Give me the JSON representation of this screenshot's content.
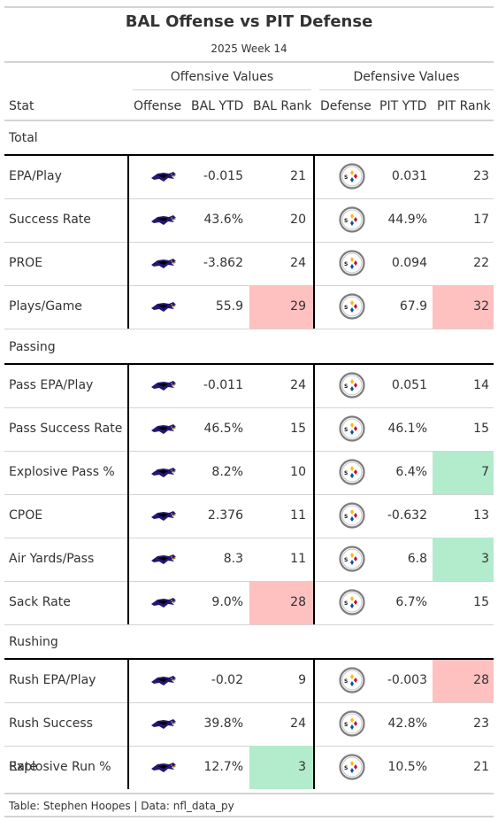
{
  "title": "BAL Offense vs PIT Defense",
  "subtitle": "2025 Week 14",
  "spanners": {
    "offense": "Offensive Values",
    "defense": "Defensive Values"
  },
  "columns": [
    "Stat",
    "Offense",
    "BAL YTD",
    "BAL Rank",
    "Defense",
    "PIT YTD",
    "PIT Rank"
  ],
  "icons": {
    "offense": "ravens-logo-icon",
    "defense": "steelers-logo-icon"
  },
  "colors": {
    "bad": "#ffc0c0",
    "good": "#b3ebcd",
    "rule": "#d3d3d3"
  },
  "groups": [
    {
      "label": "Total",
      "rows": [
        {
          "stat": "EPA/Play",
          "off_ytd": "-0.015",
          "off_rank": "21",
          "def_ytd": "0.031",
          "def_rank": "23",
          "off_hl": "",
          "def_hl": ""
        },
        {
          "stat": "Success Rate",
          "off_ytd": "43.6%",
          "off_rank": "20",
          "def_ytd": "44.9%",
          "def_rank": "17",
          "off_hl": "",
          "def_hl": ""
        },
        {
          "stat": "PROE",
          "off_ytd": "-3.862",
          "off_rank": "24",
          "def_ytd": "0.094",
          "def_rank": "22",
          "off_hl": "",
          "def_hl": ""
        },
        {
          "stat": "Plays/Game",
          "off_ytd": "55.9",
          "off_rank": "29",
          "def_ytd": "67.9",
          "def_rank": "32",
          "off_hl": "bad",
          "def_hl": "bad"
        }
      ]
    },
    {
      "label": "Passing",
      "rows": [
        {
          "stat": "Pass EPA/Play",
          "off_ytd": "-0.011",
          "off_rank": "24",
          "def_ytd": "0.051",
          "def_rank": "14",
          "off_hl": "",
          "def_hl": ""
        },
        {
          "stat": "Pass Success Rate",
          "off_ytd": "46.5%",
          "off_rank": "15",
          "def_ytd": "46.1%",
          "def_rank": "15",
          "off_hl": "",
          "def_hl": ""
        },
        {
          "stat": "Explosive Pass %",
          "off_ytd": "8.2%",
          "off_rank": "10",
          "def_ytd": "6.4%",
          "def_rank": "7",
          "off_hl": "",
          "def_hl": "good"
        },
        {
          "stat": "CPOE",
          "off_ytd": "2.376",
          "off_rank": "11",
          "def_ytd": "-0.632",
          "def_rank": "13",
          "off_hl": "",
          "def_hl": ""
        },
        {
          "stat": "Air Yards/Pass",
          "off_ytd": "8.3",
          "off_rank": "11",
          "def_ytd": "6.8",
          "def_rank": "3",
          "off_hl": "",
          "def_hl": "good"
        },
        {
          "stat": "Sack Rate",
          "off_ytd": "9.0%",
          "off_rank": "28",
          "def_ytd": "6.7%",
          "def_rank": "15",
          "off_hl": "bad",
          "def_hl": ""
        }
      ]
    },
    {
      "label": "Rushing",
      "rows": [
        {
          "stat": "Rush EPA/Play",
          "off_ytd": "-0.02",
          "off_rank": "9",
          "def_ytd": "-0.003",
          "def_rank": "28",
          "off_hl": "",
          "def_hl": "bad"
        },
        {
          "stat": "Rush Success Rate",
          "off_ytd": "39.8%",
          "off_rank": "24",
          "def_ytd": "42.8%",
          "def_rank": "23",
          "off_hl": "",
          "def_hl": ""
        },
        {
          "stat": "Explosive Run %",
          "off_ytd": "12.7%",
          "off_rank": "3",
          "def_ytd": "10.5%",
          "def_rank": "21",
          "off_hl": "good",
          "def_hl": ""
        }
      ]
    }
  ],
  "footer": "Table: Stephen Hoopes | Data: nfl_data_py"
}
